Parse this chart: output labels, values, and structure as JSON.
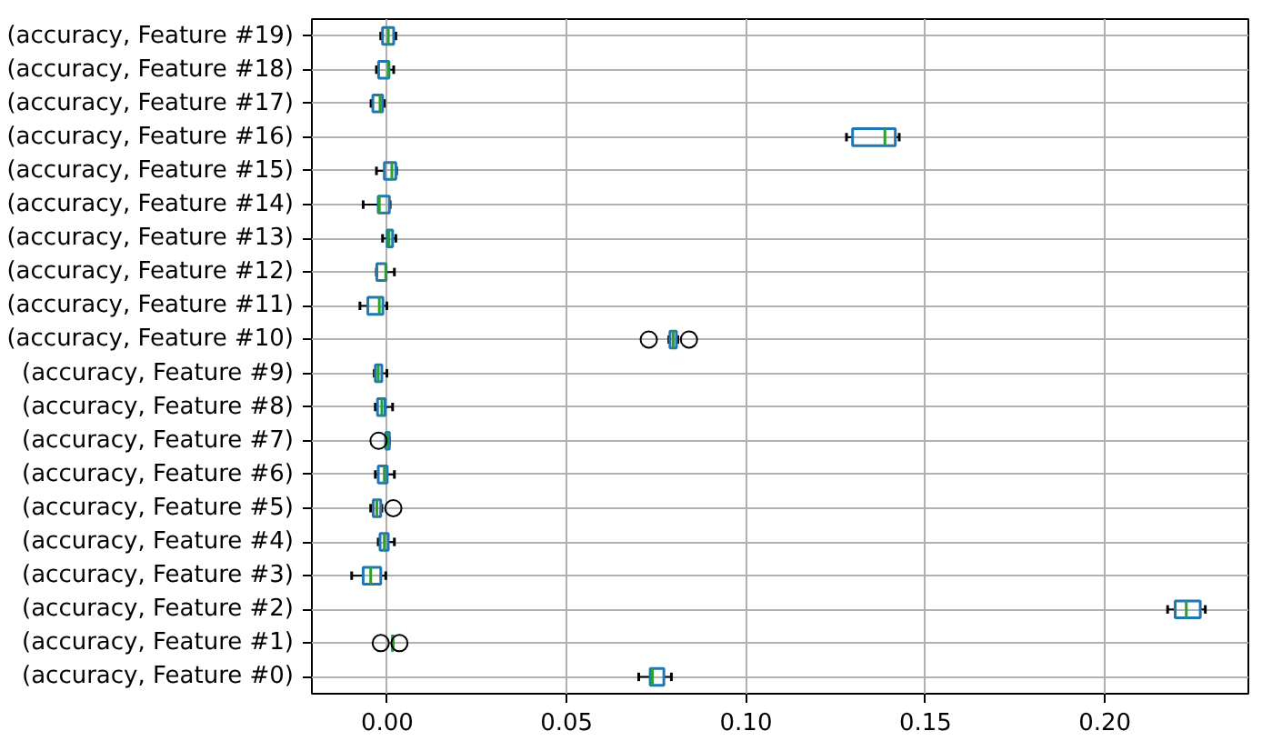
{
  "chart_data": {
    "type": "box",
    "orientation": "horizontal",
    "categories": [
      "(accuracy, Feature #19)",
      "(accuracy, Feature #18)",
      "(accuracy, Feature #17)",
      "(accuracy, Feature #16)",
      "(accuracy, Feature #15)",
      "(accuracy, Feature #14)",
      "(accuracy, Feature #13)",
      "(accuracy, Feature #12)",
      "(accuracy, Feature #11)",
      "(accuracy, Feature #10)",
      "(accuracy, Feature #9)",
      "(accuracy, Feature #8)",
      "(accuracy, Feature #7)",
      "(accuracy, Feature #6)",
      "(accuracy, Feature #5)",
      "(accuracy, Feature #4)",
      "(accuracy, Feature #3)",
      "(accuracy, Feature #2)",
      "(accuracy, Feature #1)",
      "(accuracy, Feature #0)"
    ],
    "series": [
      {
        "color": "#1f77b4",
        "boxes": [
          {
            "low": -0.0018,
            "q1": -0.0013,
            "median": 0.0003,
            "q3": 0.0018,
            "high": 0.0024
          },
          {
            "low": -0.003,
            "q1": -0.0024,
            "median": 0.0003,
            "q3": 0.0005,
            "high": 0.0018
          },
          {
            "low": -0.0045,
            "q1": -0.004,
            "median": -0.002,
            "q3": -0.0013,
            "high": -0.0008
          },
          {
            "low": 0.128,
            "q1": 0.1297,
            "median": 0.1387,
            "q3": 0.1416,
            "high": 0.1427
          },
          {
            "low": -0.003,
            "q1": -0.0008,
            "median": 0.0013,
            "q3": 0.0024,
            "high": 0.0026
          },
          {
            "low": -0.0067,
            "q1": -0.0025,
            "median": -0.0022,
            "q3": 0.0006,
            "high": 0.0008
          },
          {
            "low": -0.0013,
            "q1": 0.0,
            "median": 0.0005,
            "q3": 0.0015,
            "high": 0.0024
          },
          {
            "low": -0.003,
            "q1": -0.0029,
            "median": -0.0004,
            "q3": -0.0003,
            "high": 0.002
          },
          {
            "low": -0.0076,
            "q1": -0.0054,
            "median": -0.0022,
            "q3": -0.0012,
            "high": -0.0001
          },
          {
            "low": 0.0785,
            "q1": 0.0788,
            "median": 0.0797,
            "q3": 0.0806,
            "high": 0.081,
            "outliers": [
              0.0729,
              0.0841
            ]
          },
          {
            "low": -0.0036,
            "q1": -0.0033,
            "median": -0.0025,
            "q3": -0.0015,
            "high": -0.0001
          },
          {
            "low": -0.0033,
            "q1": -0.0027,
            "median": -0.0015,
            "q3": -0.0006,
            "high": 0.0015
          },
          {
            "low": -0.0004,
            "q1": -0.0004,
            "median": 0.0001,
            "q3": 0.0006,
            "high": 0.0006,
            "outliers": [
              -0.0024
            ]
          },
          {
            "low": -0.0033,
            "q1": -0.0025,
            "median": -0.0008,
            "q3": 0.0,
            "high": 0.002
          },
          {
            "low": -0.0046,
            "q1": -0.0039,
            "median": -0.0029,
            "q3": -0.0018,
            "high": -0.0015,
            "outliers": [
              0.0017
            ]
          },
          {
            "low": -0.0025,
            "q1": -0.002,
            "median": -0.0008,
            "q3": 0.0003,
            "high": 0.002
          },
          {
            "low": -0.0099,
            "q1": -0.0067,
            "median": -0.0046,
            "q3": -0.0018,
            "high": -0.0004
          },
          {
            "low": 0.2175,
            "q1": 0.2196,
            "median": 0.2227,
            "q3": 0.2266,
            "high": 0.228
          },
          {
            "low": 0.0015,
            "q1": 0.0015,
            "median": 0.0015,
            "q3": 0.0015,
            "high": 0.0015,
            "outliers": [
              -0.0018,
              0.0034
            ]
          },
          {
            "low": 0.0701,
            "q1": 0.0733,
            "median": 0.0739,
            "q3": 0.0771,
            "high": 0.0792
          }
        ]
      }
    ],
    "xlim": [
      -0.021,
      0.24
    ],
    "xticks": [
      {
        "value": 0,
        "label": "0.00"
      },
      {
        "value": 0.05,
        "label": "0.05"
      },
      {
        "value": 0.1,
        "label": "0.10"
      },
      {
        "value": 0.15,
        "label": "0.15"
      },
      {
        "value": 0.2,
        "label": "0.20"
      }
    ],
    "grid": true
  }
}
